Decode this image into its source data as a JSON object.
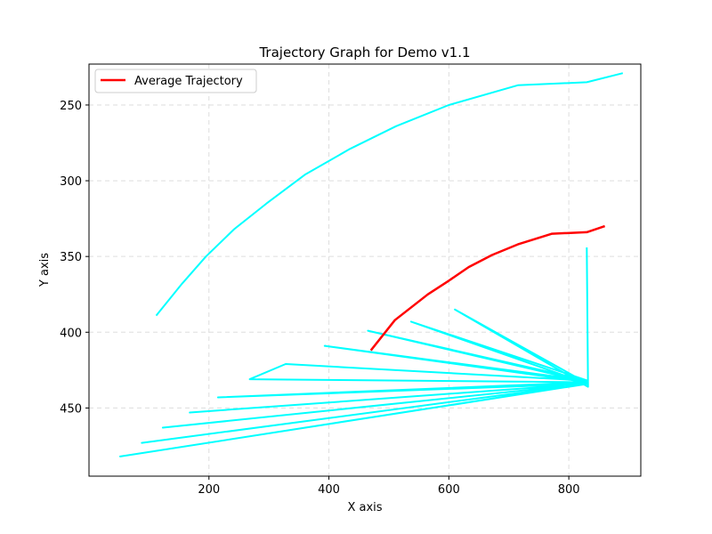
{
  "chart_data": {
    "type": "line",
    "title": "Trajectory Graph for Demo v1.1",
    "xlabel": "X axis",
    "ylabel": "Y axis",
    "xlim": [
      0,
      920
    ],
    "ylim": [
      495,
      223
    ],
    "y_inverted": true,
    "xticks": [
      200,
      400,
      600,
      800
    ],
    "yticks": [
      250,
      300,
      350,
      400,
      450
    ],
    "grid": true,
    "legend": {
      "placement": "top-left",
      "entries": [
        "Average Trajectory"
      ]
    },
    "colors": {
      "trajectory": "#00ffff",
      "average": "#ff0000",
      "grid": "#dddddd"
    },
    "trajectories": [
      {
        "points": [
          [
            112,
            389
          ],
          [
            155,
            368
          ],
          [
            195,
            350
          ],
          [
            242,
            332
          ],
          [
            296,
            315
          ],
          [
            360,
            296
          ],
          [
            435,
            279
          ],
          [
            512,
            264
          ],
          [
            600,
            250
          ],
          [
            715,
            237
          ],
          [
            830,
            235
          ],
          [
            890,
            229
          ]
        ]
      },
      {
        "points": [
          [
            830,
            344
          ],
          [
            832,
            436
          ],
          [
            610,
            385
          ],
          [
            832,
            434
          ],
          [
            537,
            393
          ],
          [
            832,
            432
          ],
          [
            465,
            399
          ],
          [
            832,
            433
          ],
          [
            393,
            409
          ],
          [
            832,
            432
          ],
          [
            328,
            421
          ],
          [
            268,
            431
          ],
          [
            832,
            433
          ],
          [
            215,
            443
          ],
          [
            832,
            434
          ],
          [
            168,
            453
          ],
          [
            832,
            434
          ],
          [
            123,
            463
          ],
          [
            832,
            434
          ],
          [
            88,
            473
          ],
          [
            832,
            434
          ],
          [
            52,
            482
          ],
          [
            830,
            434
          ]
        ]
      }
    ],
    "series": [
      {
        "name": "Average Trajectory",
        "points": [
          [
            470,
            412
          ],
          [
            510,
            392
          ],
          [
            565,
            375
          ],
          [
            600,
            366
          ],
          [
            633,
            357
          ],
          [
            672,
            349
          ],
          [
            715,
            342
          ],
          [
            772,
            335
          ],
          [
            830,
            334
          ],
          [
            860,
            330
          ]
        ]
      }
    ]
  }
}
